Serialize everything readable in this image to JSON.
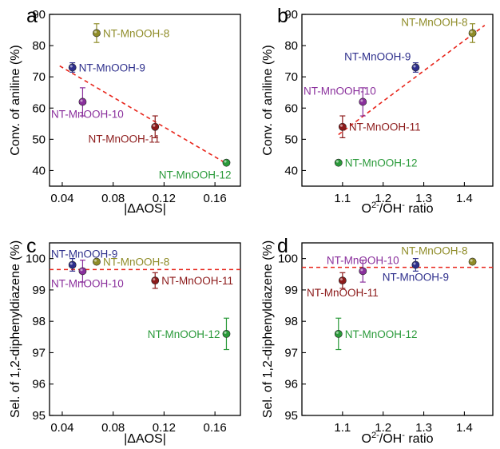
{
  "chart_data": [
    {
      "panel": "a",
      "type": "scatter",
      "xlabel": "|ΔAOS|",
      "ylabel": "Conv. of aniline (%)",
      "xlim": [
        0.03,
        0.18
      ],
      "ylim": [
        35,
        90
      ],
      "xticks": [
        "0.04",
        "0.08",
        "0.12",
        "0.16"
      ],
      "yticks": [
        "40",
        "50",
        "60",
        "70",
        "80",
        "90"
      ],
      "points": [
        {
          "label": "NT-MnOOH-8",
          "x": 0.067,
          "y": 84,
          "err": 3,
          "color": "#8f8c28",
          "label_pos": "right"
        },
        {
          "label": "NT-MnOOH-9",
          "x": 0.048,
          "y": 73,
          "err": 1.5,
          "color": "#2e2f8c",
          "label_pos": "right"
        },
        {
          "label": "NT-MnOOH-10",
          "x": 0.056,
          "y": 62,
          "err": 4.5,
          "color": "#8a2f9c",
          "label_pos": "below-left"
        },
        {
          "label": "NT-MnOOH-11",
          "x": 0.113,
          "y": 54,
          "err": 3.5,
          "color": "#8c1a1a",
          "label_pos": "below-left"
        },
        {
          "label": "NT-MnOOH-12",
          "x": 0.169,
          "y": 42.5,
          "err": 0.5,
          "color": "#2a9a3a",
          "label_pos": "below-left"
        }
      ],
      "fit": {
        "x": [
          0.038,
          0.17
        ],
        "y": [
          73.5,
          42
        ],
        "color": "#e8261c"
      }
    },
    {
      "panel": "b",
      "type": "scatter",
      "xlabel_html": [
        "O",
        "2-",
        "/OH",
        "-",
        " ratio"
      ],
      "ylabel": "Conv. of aniline (%)",
      "xlim": [
        1.0,
        1.47
      ],
      "ylim": [
        35,
        90
      ],
      "xticks": [
        "1.1",
        "1.2",
        "1.3",
        "1.4"
      ],
      "yticks": [
        "40",
        "50",
        "60",
        "70",
        "80",
        "90"
      ],
      "points": [
        {
          "label": "NT-MnOOH-8",
          "x": 1.42,
          "y": 84,
          "err": 3,
          "color": "#8f8c28",
          "label_pos": "above-left"
        },
        {
          "label": "NT-MnOOH-9",
          "x": 1.28,
          "y": 73,
          "err": 1.5,
          "color": "#2e2f8c",
          "label_pos": "above-left"
        },
        {
          "label": "NT-MnOOH-10",
          "x": 1.15,
          "y": 62,
          "err": 4.5,
          "color": "#8a2f9c",
          "label_pos": "above-left"
        },
        {
          "label": "NT-MnOOH-11",
          "x": 1.1,
          "y": 54,
          "err": 3.5,
          "color": "#8c1a1a",
          "label_pos": "right"
        },
        {
          "label": "NT-MnOOH-12",
          "x": 1.09,
          "y": 42.5,
          "err": 0.5,
          "color": "#2a9a3a",
          "label_pos": "right"
        }
      ],
      "fit": {
        "x": [
          1.09,
          1.45
        ],
        "y": [
          51.5,
          86.5
        ],
        "color": "#e8261c"
      }
    },
    {
      "panel": "c",
      "type": "scatter",
      "xlabel": "|ΔAOS|",
      "ylabel": "Sel. of 1,2-diphenyldiazene (%)",
      "xlim": [
        0.03,
        0.18
      ],
      "ylim": [
        95,
        100.5
      ],
      "xticks": [
        "0.04",
        "0.08",
        "0.12",
        "0.16"
      ],
      "yticks": [
        "95",
        "96",
        "97",
        "98",
        "99",
        "100"
      ],
      "points": [
        {
          "label": "NT-MnOOH-8",
          "x": 0.067,
          "y": 99.9,
          "err": 0,
          "color": "#8f8c28",
          "label_pos": "right"
        },
        {
          "label": "NT-MnOOH-9",
          "x": 0.048,
          "y": 99.8,
          "err": 0.2,
          "color": "#2e2f8c",
          "label_pos": "above"
        },
        {
          "label": "NT-MnOOH-10",
          "x": 0.056,
          "y": 99.6,
          "err": 0.35,
          "color": "#8a2f9c",
          "label_pos": "below"
        },
        {
          "label": "NT-MnOOH-11",
          "x": 0.113,
          "y": 99.3,
          "err": 0.25,
          "color": "#8c1a1a",
          "label_pos": "right"
        },
        {
          "label": "NT-MnOOH-12",
          "x": 0.169,
          "y": 97.6,
          "err": 0.5,
          "color": "#2a9a3a",
          "label_pos": "left"
        }
      ],
      "hline": {
        "y": 99.65,
        "color": "#e8261c"
      }
    },
    {
      "panel": "d",
      "type": "scatter",
      "xlabel_html": [
        "O",
        "2-",
        "/OH",
        "-",
        " ratio"
      ],
      "ylabel": "Sel. of 1,2-diphenyldiazene (%)",
      "xlim": [
        1.0,
        1.47
      ],
      "ylim": [
        95,
        100.5
      ],
      "xticks": [
        "1.1",
        "1.2",
        "1.3",
        "1.4"
      ],
      "yticks": [
        "95",
        "96",
        "97",
        "98",
        "99",
        "100"
      ],
      "points": [
        {
          "label": "NT-MnOOH-8",
          "x": 1.42,
          "y": 99.9,
          "err": 0,
          "color": "#8f8c28",
          "label_pos": "above-left"
        },
        {
          "label": "NT-MnOOH-9",
          "x": 1.28,
          "y": 99.8,
          "err": 0.2,
          "color": "#2e2f8c",
          "label_pos": "below"
        },
        {
          "label": "NT-MnOOH-10",
          "x": 1.15,
          "y": 99.6,
          "err": 0.35,
          "color": "#8a2f9c",
          "label_pos": "above"
        },
        {
          "label": "NT-MnOOH-11",
          "x": 1.1,
          "y": 99.3,
          "err": 0.25,
          "color": "#8c1a1a",
          "label_pos": "below"
        },
        {
          "label": "NT-MnOOH-12",
          "x": 1.09,
          "y": 97.6,
          "err": 0.5,
          "color": "#2a9a3a",
          "label_pos": "right"
        }
      ],
      "hline": {
        "y": 99.72,
        "color": "#e8261c"
      }
    }
  ]
}
